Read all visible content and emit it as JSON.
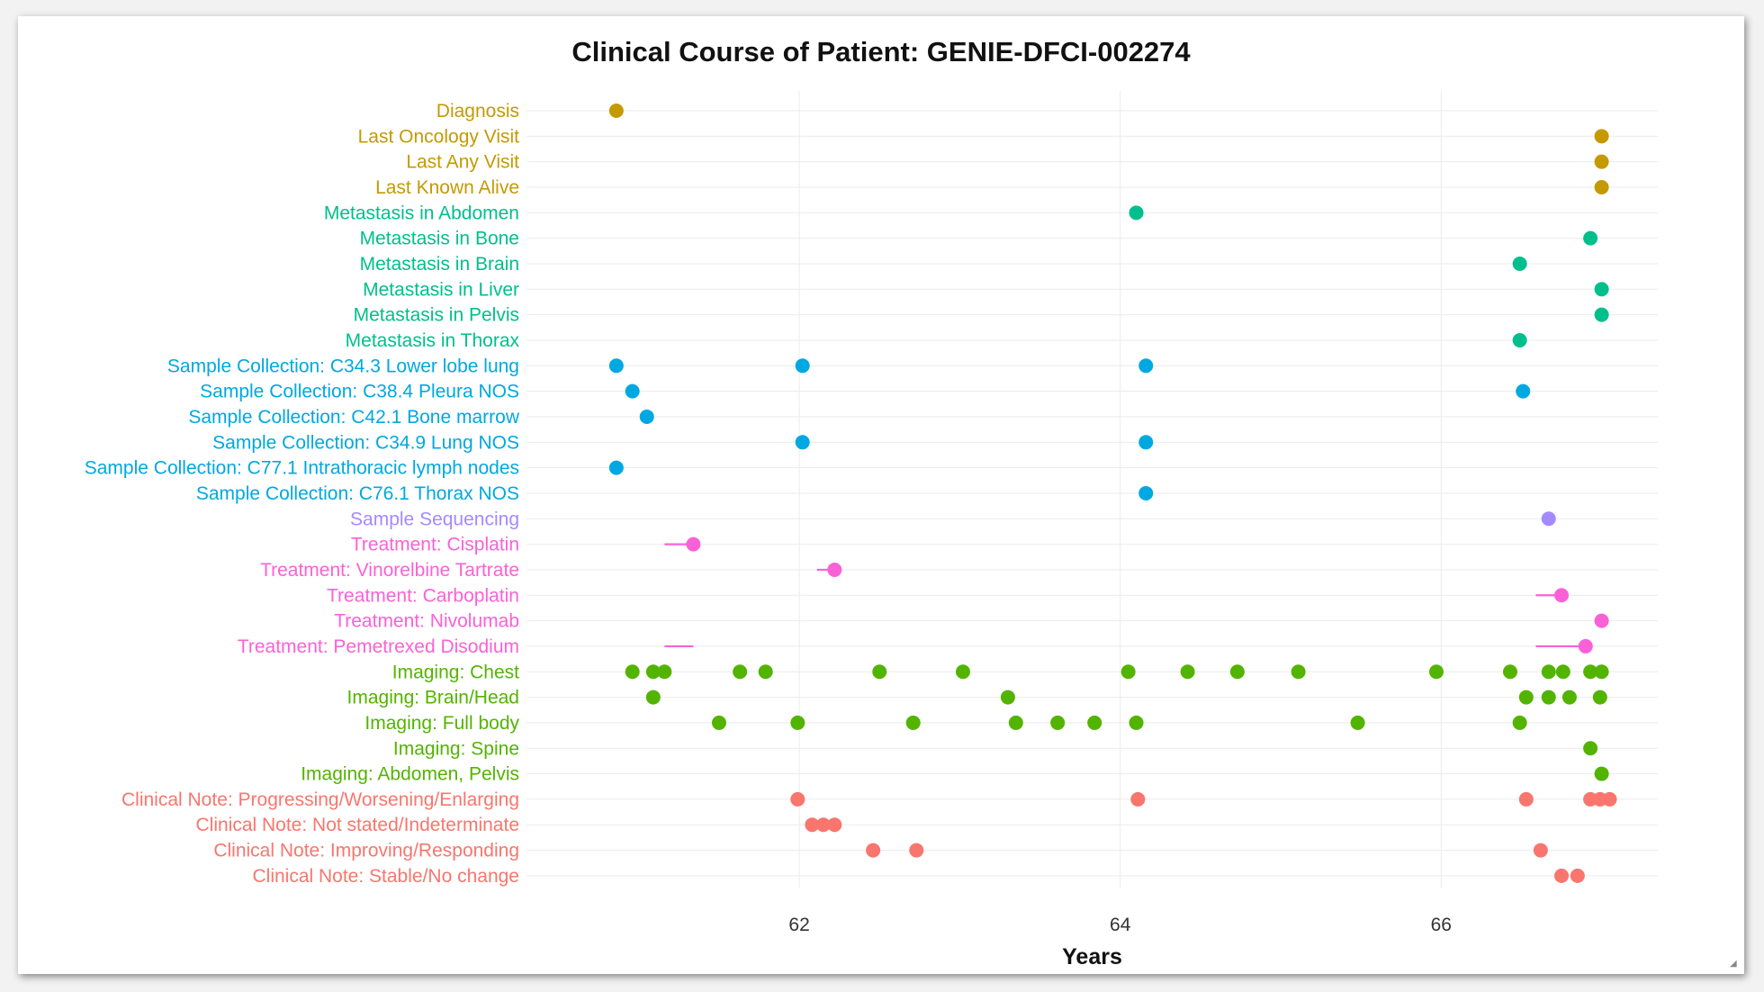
{
  "chart_data": {
    "type": "scatter",
    "title": "Clinical Course of Patient: GENIE-DFCI-002274",
    "xlabel": "Years",
    "xlim": [
      60.3,
      67.35
    ],
    "xticks": [
      62,
      64,
      66
    ],
    "grid": true,
    "colors": {
      "status": "#C49A00",
      "metastasis": "#00BF8C",
      "sample": "#00A8E1",
      "sequencing": "#A58AFF",
      "treatment": "#FB61D7",
      "imaging": "#53B400",
      "note": "#F8766D"
    },
    "rows": [
      {
        "label": "Diagnosis",
        "group": "status",
        "points": [
          60.86
        ]
      },
      {
        "label": "Last Oncology Visit",
        "group": "status",
        "points": [
          67.0
        ]
      },
      {
        "label": "Last Any Visit",
        "group": "status",
        "points": [
          67.0
        ]
      },
      {
        "label": "Last Known Alive",
        "group": "status",
        "points": [
          67.0
        ]
      },
      {
        "label": "Metastasis in Abdomen",
        "group": "metastasis",
        "points": [
          64.1
        ]
      },
      {
        "label": "Metastasis in Bone",
        "group": "metastasis",
        "points": [
          66.93
        ]
      },
      {
        "label": "Metastasis in Brain",
        "group": "metastasis",
        "points": [
          66.49
        ]
      },
      {
        "label": "Metastasis in Liver",
        "group": "metastasis",
        "points": [
          67.0
        ]
      },
      {
        "label": "Metastasis in Pelvis",
        "group": "metastasis",
        "points": [
          67.0
        ]
      },
      {
        "label": "Metastasis in Thorax",
        "group": "metastasis",
        "points": [
          66.49
        ]
      },
      {
        "label": "Sample Collection: C34.3 Lower lobe lung",
        "group": "sample",
        "points": [
          60.86,
          62.02,
          64.16
        ]
      },
      {
        "label": "Sample Collection: C38.4 Pleura NOS",
        "group": "sample",
        "points": [
          60.96,
          66.51
        ]
      },
      {
        "label": "Sample Collection: C42.1 Bone marrow",
        "group": "sample",
        "points": [
          61.05
        ]
      },
      {
        "label": "Sample Collection: C34.9 Lung NOS",
        "group": "sample",
        "points": [
          62.02,
          64.16
        ]
      },
      {
        "label": "Sample Collection: C77.1 Intrathoracic lymph nodes",
        "group": "sample",
        "points": [
          60.86
        ]
      },
      {
        "label": "Sample Collection: C76.1 Thorax NOS",
        "group": "sample",
        "points": [
          64.16
        ]
      },
      {
        "label": "Sample Sequencing",
        "group": "sequencing",
        "points": [
          66.67
        ]
      },
      {
        "label": "Treatment: Cisplatin",
        "group": "treatment",
        "points": [
          61.34
        ],
        "ranges": [
          [
            61.16,
            61.34
          ]
        ]
      },
      {
        "label": "Treatment: Vinorelbine Tartrate",
        "group": "treatment",
        "points": [
          62.22
        ],
        "ranges": [
          [
            62.11,
            62.22
          ]
        ]
      },
      {
        "label": "Treatment: Carboplatin",
        "group": "treatment",
        "points": [
          66.75
        ],
        "ranges": [
          [
            66.59,
            66.75
          ]
        ]
      },
      {
        "label": "Treatment: Nivolumab",
        "group": "treatment",
        "points": [
          67.0
        ]
      },
      {
        "label": "Treatment: Pemetrexed Disodium",
        "group": "treatment",
        "points": [
          66.9
        ],
        "ranges": [
          [
            61.16,
            61.34
          ],
          [
            66.59,
            66.9
          ]
        ]
      },
      {
        "label": "Imaging: Chest",
        "group": "imaging",
        "points": [
          60.96,
          61.09,
          61.16,
          61.63,
          61.79,
          62.5,
          63.02,
          64.05,
          64.42,
          64.73,
          65.11,
          65.97,
          66.43,
          66.67,
          66.76,
          66.93,
          67.0
        ]
      },
      {
        "label": "Imaging: Brain/Head",
        "group": "imaging",
        "points": [
          61.09,
          63.3,
          66.53,
          66.67,
          66.8,
          66.99
        ]
      },
      {
        "label": "Imaging: Full body",
        "group": "imaging",
        "points": [
          61.5,
          61.99,
          62.71,
          63.35,
          63.61,
          63.84,
          64.1,
          65.48,
          66.49
        ]
      },
      {
        "label": "Imaging: Spine",
        "group": "imaging",
        "points": [
          66.93
        ]
      },
      {
        "label": "Imaging: Abdomen, Pelvis",
        "group": "imaging",
        "points": [
          67.0
        ]
      },
      {
        "label": "Clinical Note: Progressing/Worsening/Enlarging",
        "group": "note",
        "points": [
          61.99,
          64.11,
          66.53,
          66.93,
          66.99,
          67.05
        ]
      },
      {
        "label": "Clinical Note: Not stated/Indeterminate",
        "group": "note",
        "points": [
          62.08,
          62.15,
          62.22
        ]
      },
      {
        "label": "Clinical Note: Improving/Responding",
        "group": "note",
        "points": [
          62.46,
          62.73,
          66.62
        ]
      },
      {
        "label": "Clinical Note: Stable/No change",
        "group": "note",
        "points": [
          66.75,
          66.85
        ]
      }
    ]
  }
}
